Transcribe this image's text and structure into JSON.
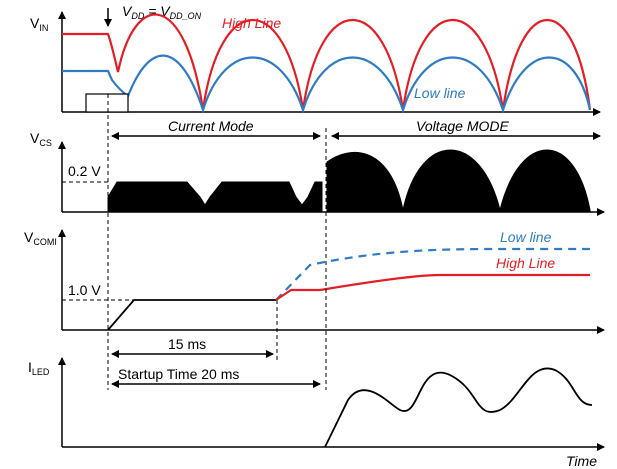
{
  "colors": {
    "high_line": "#e31e24",
    "low_line": "#2f7bc4",
    "axis": "#000000",
    "fill": "#000000"
  },
  "vdd_annotation": {
    "v": "V",
    "v_sub": "DD",
    "equals": " = V",
    "on_sub": "DD_ON"
  },
  "signals": {
    "vin": {
      "main": "V",
      "sub": "IN"
    },
    "vcs": {
      "main": "V",
      "sub": "CS"
    },
    "vcomi": {
      "main": "V",
      "sub": "COMI"
    },
    "iled": {
      "main": "I",
      "sub": "LED"
    }
  },
  "labels": {
    "high_line_top": "High Line",
    "low_line_top": "Low line",
    "current_mode": "Current Mode",
    "voltage_mode": "Voltage MODE",
    "vcs_level": "0.2 V",
    "low_line_comi": "Low line",
    "high_line_comi": "High Line",
    "vcomi_level": "1.0 V",
    "t15": "15 ms",
    "startup": "Startup Time 20 ms",
    "time": "Time"
  }
}
